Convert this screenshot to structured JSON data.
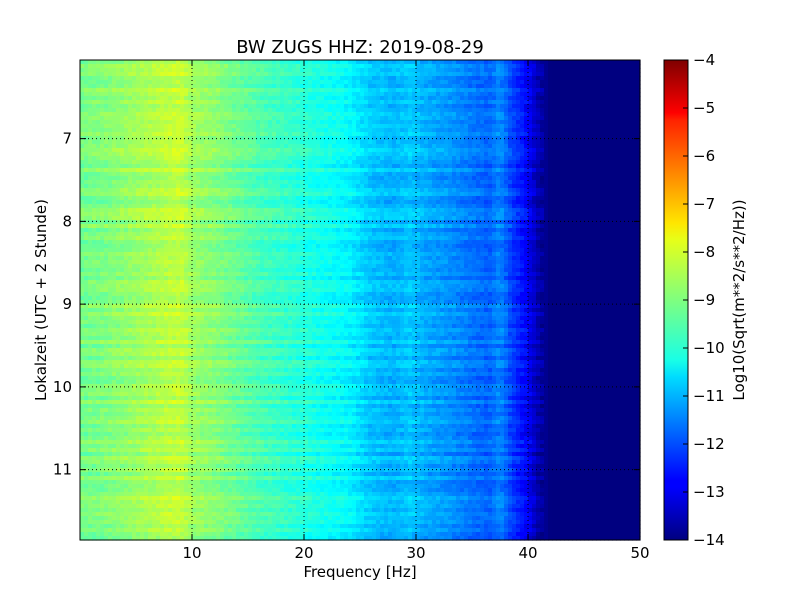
{
  "chart_data": {
    "type": "heatmap",
    "title": "BW ZUGS HHZ: 2019-08-29",
    "xlabel": "Frequency [Hz]",
    "ylabel": "Lokalzeit (UTC + 2 Stunde)",
    "xlim": [
      0,
      50
    ],
    "ylim": [
      11.85,
      6.05
    ],
    "xticks": [
      10,
      20,
      30,
      40,
      50
    ],
    "yticks": [
      7,
      8,
      9,
      10,
      11
    ],
    "grid": true,
    "colormap": "jet",
    "colorbar": {
      "label": "Log10(Sqrt(m**2/s**2/Hz))",
      "range": [
        -14,
        -4
      ],
      "ticks": [
        -4,
        -5,
        -6,
        -7,
        -8,
        -9,
        -10,
        -11,
        -12,
        -13,
        -14
      ]
    },
    "spectrum_profile": {
      "frequency_hz": [
        0,
        2,
        4,
        6,
        8,
        9,
        10,
        12,
        14,
        16,
        18,
        20,
        22,
        24,
        26,
        28,
        29.5,
        31,
        33,
        35,
        36.5,
        37.5,
        38.5,
        40,
        41,
        42,
        44,
        50
      ],
      "log_amplitude": [
        -9.1,
        -9.0,
        -8.8,
        -8.6,
        -8.4,
        -8.3,
        -8.7,
        -8.9,
        -9.2,
        -9.5,
        -9.7,
        -9.9,
        -10.1,
        -10.3,
        -10.8,
        -11.0,
        -10.8,
        -11.1,
        -11.3,
        -11.6,
        -11.8,
        -11.4,
        -12.1,
        -12.8,
        -13.6,
        -14.0,
        -14.0,
        -14.0
      ]
    }
  }
}
